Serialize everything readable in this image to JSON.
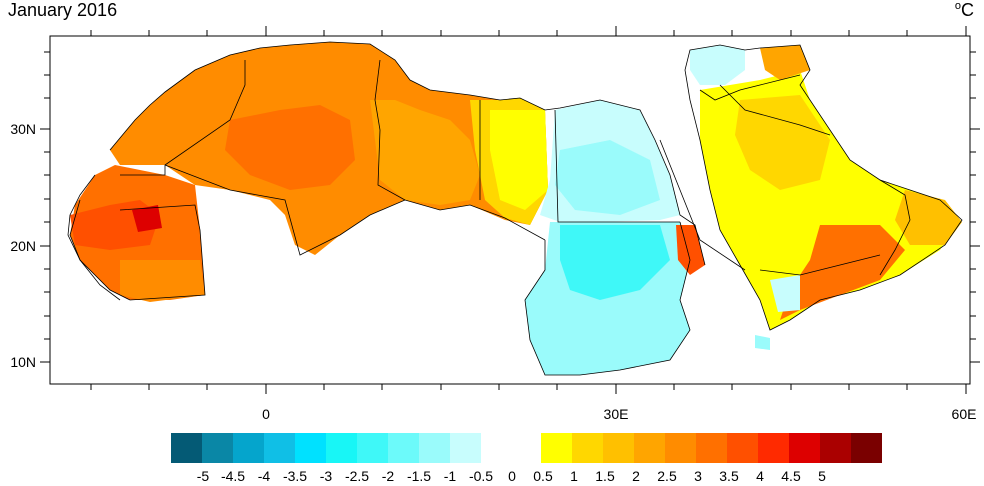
{
  "title": "January 2016",
  "unit": "°C",
  "unit_base": "o",
  "unit_letter": "C",
  "map": {
    "lat_labels": [
      "30N",
      "20N",
      "10N"
    ],
    "lon_labels": [
      "0",
      "30E",
      "60E"
    ]
  },
  "colorbar": {
    "labels": [
      "-5",
      "-4.5",
      "-4",
      "-3.5",
      "-3",
      "-2.5",
      "-2",
      "-1.5",
      "-1",
      "-0.5",
      "0",
      "0.5",
      "1",
      "1.5",
      "2",
      "2.5",
      "3",
      "3.5",
      "4",
      "4.5",
      "5"
    ],
    "cold_colors": [
      "#045a75",
      "#0a87a6",
      "#05a5cc",
      "#10bfe6",
      "#00e1ff",
      "#18f6f6",
      "#3ff8f8",
      "#6cfafa",
      "#9afbfb",
      "#c8fdfd"
    ],
    "warm_colors": [
      "#ffff00",
      "#ffd700",
      "#ffc000",
      "#ffa500",
      "#ff8c00",
      "#ff7000",
      "#ff5000",
      "#ff2a00",
      "#dd0000",
      "#aa0000",
      "#7a0000"
    ]
  }
}
